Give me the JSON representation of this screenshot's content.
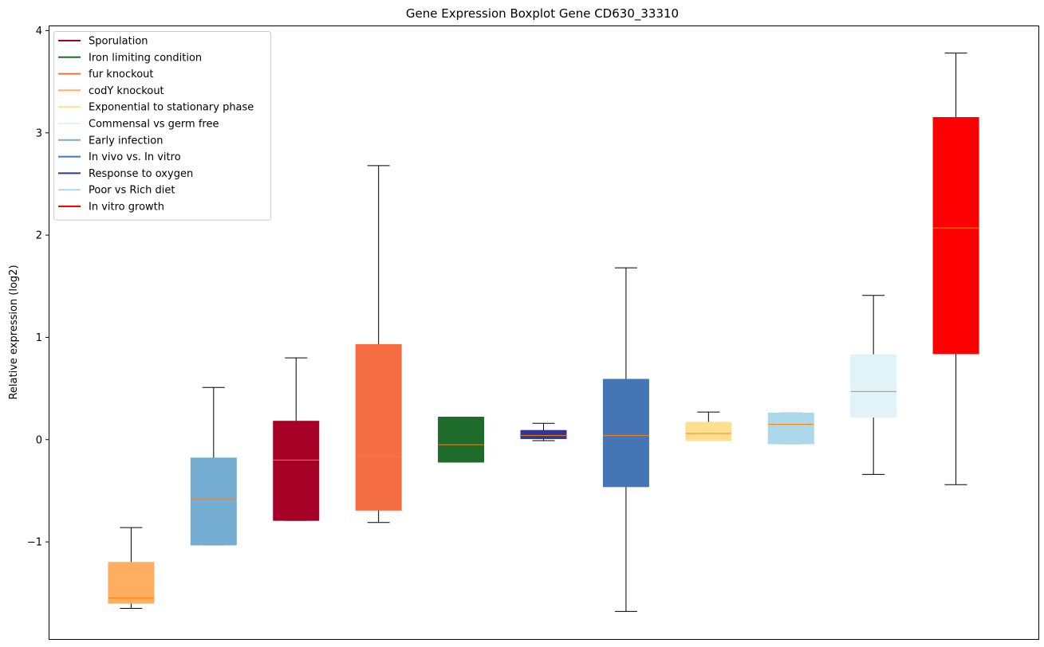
{
  "chart_data": {
    "type": "boxplot",
    "title": "Gene Expression Boxplot Gene CD630_33310",
    "xlabel": "",
    "ylabel": "Relative expression (log2)",
    "ylim": [
      -1.95,
      4.05
    ],
    "yticks": [
      -1,
      0,
      1,
      2,
      3,
      4
    ],
    "ytick_labels": [
      "−1",
      "0",
      "1",
      "2",
      "3",
      "4"
    ],
    "median_color": "#ff7f0e",
    "whisker_color": "#000000",
    "legend": [
      {
        "label": "Sporulation",
        "color": "#a50026"
      },
      {
        "label": "Iron limiting condition",
        "color": "#1f6b2b"
      },
      {
        "label": "fur knockout",
        "color": "#f46d43"
      },
      {
        "label": "codY knockout",
        "color": "#fdae61"
      },
      {
        "label": "Exponential to stationary phase",
        "color": "#fee090"
      },
      {
        "label": "Commensal vs germ free",
        "color": "#e0f3f8"
      },
      {
        "label": "Early infection",
        "color": "#74add1"
      },
      {
        "label": "In vivo vs. In vitro",
        "color": "#4575b4"
      },
      {
        "label": "Response to oxygen",
        "color": "#313695"
      },
      {
        "label": "Poor vs Rich diet",
        "color": "#abd9e9"
      },
      {
        "label": "In vitro growth",
        "color": "#ff0000"
      }
    ],
    "boxes": [
      {
        "name": "codY knockout",
        "color": "#fdae61",
        "whislo": -1.65,
        "q1": -1.6,
        "med": -1.55,
        "q3": -1.2,
        "whishi": -0.86
      },
      {
        "name": "Early infection",
        "color": "#74add1",
        "whislo": -1.03,
        "q1": -1.03,
        "med": -0.58,
        "q3": -0.18,
        "whishi": 0.51
      },
      {
        "name": "Sporulation",
        "color": "#a50026",
        "whislo": -0.79,
        "q1": -0.79,
        "med": -0.2,
        "q3": 0.18,
        "whishi": 0.8
      },
      {
        "name": "fur knockout",
        "color": "#f46d43",
        "whislo": -0.81,
        "q1": -0.69,
        "med": -0.17,
        "q3": 0.93,
        "whishi": 2.68
      },
      {
        "name": "Iron limiting condition",
        "color": "#1f6b2b",
        "whislo": -0.22,
        "q1": -0.22,
        "med": -0.05,
        "q3": 0.22,
        "whishi": 0.22
      },
      {
        "name": "Response to oxygen",
        "color": "#313695",
        "whislo": -0.01,
        "q1": 0.01,
        "med": 0.04,
        "q3": 0.09,
        "whishi": 0.16
      },
      {
        "name": "In vivo vs. In vitro",
        "color": "#4575b4",
        "whislo": -1.68,
        "q1": -0.46,
        "med": 0.04,
        "q3": 0.59,
        "whishi": 1.68
      },
      {
        "name": "Exponential to stationary phase",
        "color": "#fee090",
        "whislo": -0.01,
        "q1": -0.01,
        "med": 0.06,
        "q3": 0.17,
        "whishi": 0.27
      },
      {
        "name": "Poor vs Rich diet",
        "color": "#abd9e9",
        "whislo": -0.04,
        "q1": -0.04,
        "med": 0.15,
        "q3": 0.26,
        "whishi": 0.26
      },
      {
        "name": "Commensal vs germ free",
        "color": "#e0f3f8",
        "whislo": -0.34,
        "q1": 0.22,
        "med": 0.47,
        "q3": 0.83,
        "whishi": 1.41
      },
      {
        "name": "In vitro growth",
        "color": "#ff0000",
        "whislo": -0.44,
        "q1": 0.84,
        "med": 2.07,
        "q3": 3.15,
        "whishi": 3.78
      }
    ]
  }
}
